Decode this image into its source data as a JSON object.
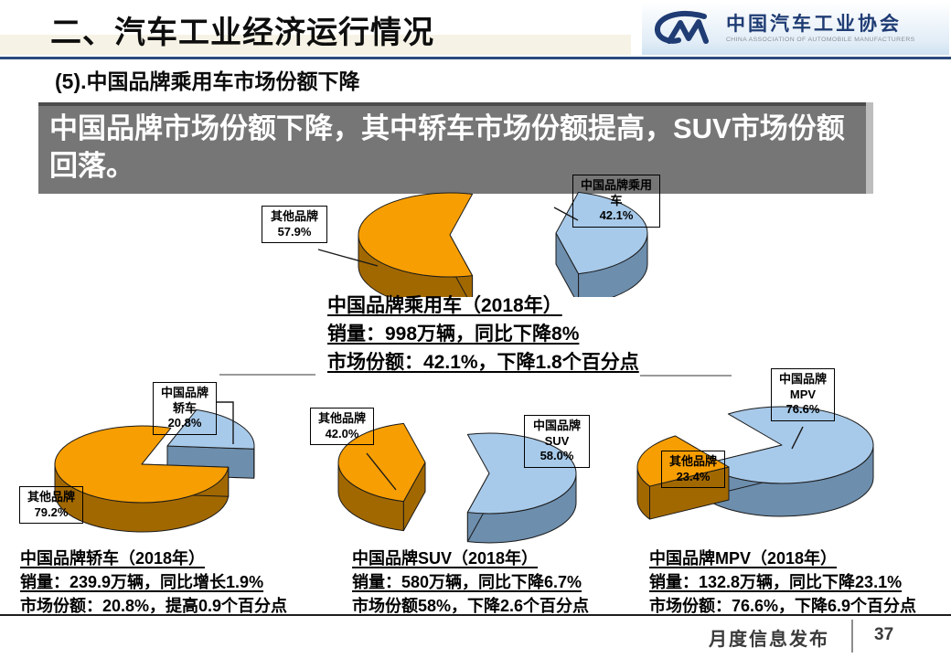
{
  "header": {
    "title": "二、汽车工业经济运行情况",
    "subtitle": "(5).中国品牌乘用车市场份额下降",
    "logo": {
      "cn": "中国汽车工业协会",
      "en": "CHINA ASSOCIATION OF AUTOMOBILE MANUFACTURERS"
    }
  },
  "highlight": {
    "line1": "中国品牌市场份额下降，其中轿车市场份额提高，SUV市场份额",
    "line2": "回落。"
  },
  "colors": {
    "orange": "#f79e02",
    "orange_side": "#a26800",
    "blue": "#a8caea",
    "blue_side": "#6d8ead",
    "accent_rule": "#2b4a7d"
  },
  "chart_data": [
    {
      "id": "passenger",
      "type": "pie",
      "title": "中国品牌乘用车（2018年）",
      "slices": [
        {
          "label": "其他品牌",
          "value": 57.9,
          "pct": "57.9%",
          "color": "orange"
        },
        {
          "label": "中国品牌乘用车",
          "value": 42.1,
          "pct": "42.1%",
          "color": "blue"
        }
      ],
      "caption": [
        "中国品牌乘用车（2018年）",
        "销量：998万辆，同比下降8%",
        "市场份额：42.1%，下降1.8个百分点"
      ]
    },
    {
      "id": "sedan",
      "type": "pie",
      "title": "中国品牌轿车（2018年）",
      "slices": [
        {
          "label": "其他品牌",
          "value": 79.2,
          "pct": "79.2%",
          "color": "orange"
        },
        {
          "label": "中国品牌轿车",
          "value": 20.8,
          "pct": "20.8%",
          "color": "blue"
        }
      ],
      "caption": [
        "中国品牌轿车（2018年）",
        "销量：239.9万辆，同比增长1.9%",
        "市场份额：20.8%，提高0.9个百分点"
      ]
    },
    {
      "id": "suv",
      "type": "pie",
      "title": "中国品牌SUV（2018年）",
      "slices": [
        {
          "label": "其他品牌",
          "value": 42.0,
          "pct": "42.0%",
          "color": "orange"
        },
        {
          "label": "中国品牌SUV",
          "value": 58.0,
          "pct": "58.0%",
          "color": "blue"
        }
      ],
      "caption": [
        "中国品牌SUV（2018年）",
        "销量：580万辆，同比下降6.7%",
        "市场份额58%，下降2.6个百分点"
      ]
    },
    {
      "id": "mpv",
      "type": "pie",
      "title": "中国品牌MPV（2018年）",
      "slices": [
        {
          "label": "其他品牌",
          "value": 23.4,
          "pct": "23.4%",
          "color": "orange"
        },
        {
          "label": "中国品牌MPV",
          "value": 76.6,
          "pct": "76.6%",
          "color": "blue"
        }
      ],
      "caption": [
        "中国品牌MPV（2018年）",
        "销量：132.8万辆，同比下降23.1%",
        "市场份额：76.6%，下降6.9个百分点"
      ]
    }
  ],
  "footer": {
    "label": "月度信息发布",
    "page": "37"
  }
}
